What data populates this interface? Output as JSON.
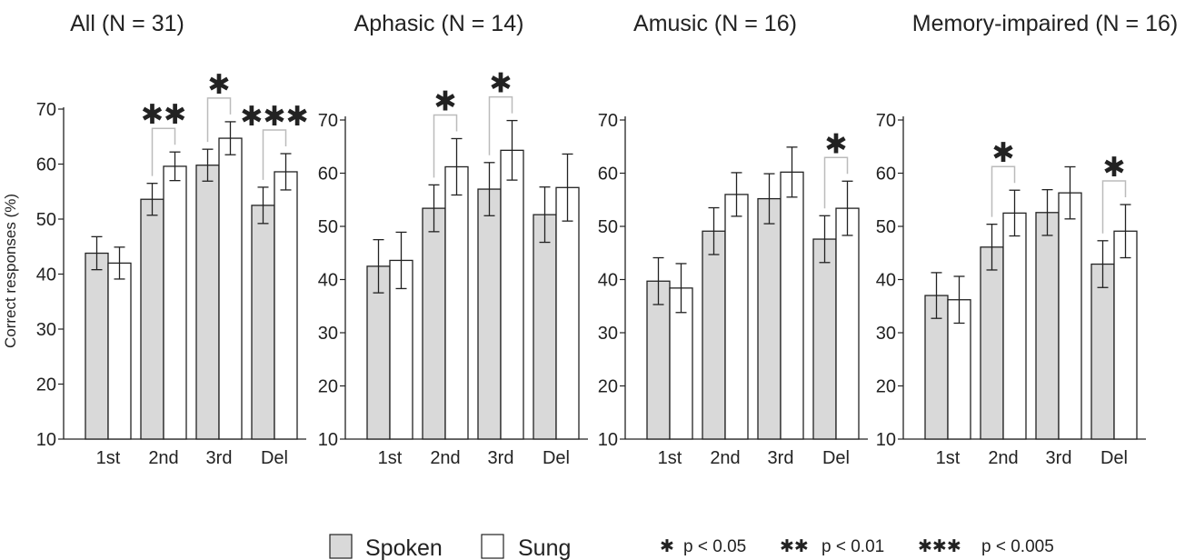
{
  "y_label": "Correct responses (%)",
  "legend": {
    "series": [
      {
        "name": "Spoken",
        "color": "#d9d9d9"
      },
      {
        "name": "Sung",
        "color": "#ffffff"
      }
    ],
    "significance": [
      {
        "symbol": "✱",
        "label": "p < 0.05"
      },
      {
        "symbol": "✱✱",
        "label": "p < 0.01"
      },
      {
        "symbol": "✱✱✱",
        "label": "p < 0.005"
      }
    ]
  },
  "chart_data": [
    {
      "type": "bar",
      "title": "All (N = 31)",
      "categories": [
        "1st",
        "2nd",
        "3rd",
        "Del"
      ],
      "ylim": [
        10,
        70
      ],
      "yticks": [
        10,
        20,
        30,
        40,
        50,
        60,
        70
      ],
      "series": [
        {
          "name": "Spoken",
          "values": [
            43.8,
            53.6,
            59.8,
            52.5
          ],
          "errors": [
            3.0,
            2.9,
            2.9,
            3.3
          ]
        },
        {
          "name": "Sung",
          "values": [
            42.0,
            59.6,
            64.7,
            58.6
          ],
          "errors": [
            2.9,
            2.6,
            3.0,
            3.3
          ]
        }
      ],
      "significance": [
        {
          "category": "2nd",
          "stars": "✱✱"
        },
        {
          "category": "3rd",
          "stars": "✱"
        },
        {
          "category": "Del",
          "stars": "✱✱✱"
        }
      ]
    },
    {
      "type": "bar",
      "title": "Aphasic (N = 14)",
      "categories": [
        "1st",
        "2nd",
        "3rd",
        "Del"
      ],
      "ylim": [
        10,
        70
      ],
      "yticks": [
        10,
        20,
        30,
        40,
        50,
        60,
        70
      ],
      "series": [
        {
          "name": "Spoken",
          "values": [
            42.5,
            53.4,
            57.0,
            52.2
          ],
          "errors": [
            5.0,
            4.4,
            5.0,
            5.2
          ]
        },
        {
          "name": "Sung",
          "values": [
            43.6,
            61.2,
            64.3,
            57.3
          ],
          "errors": [
            5.3,
            5.3,
            5.6,
            6.3
          ]
        }
      ],
      "significance": [
        {
          "category": "2nd",
          "stars": "✱"
        },
        {
          "category": "3rd",
          "stars": "✱"
        }
      ]
    },
    {
      "type": "bar",
      "title": "Amusic (N = 16)",
      "categories": [
        "1st",
        "2nd",
        "3rd",
        "Del"
      ],
      "ylim": [
        10,
        70
      ],
      "yticks": [
        10,
        20,
        30,
        40,
        50,
        60,
        70
      ],
      "series": [
        {
          "name": "Spoken",
          "values": [
            39.7,
            49.1,
            55.2,
            47.6
          ],
          "errors": [
            4.4,
            4.4,
            4.7,
            4.4
          ]
        },
        {
          "name": "Sung",
          "values": [
            38.4,
            56.0,
            60.2,
            53.4
          ],
          "errors": [
            4.6,
            4.1,
            4.7,
            5.1
          ]
        }
      ],
      "significance": [
        {
          "category": "Del",
          "stars": "✱"
        }
      ]
    },
    {
      "type": "bar",
      "title": "Memory-impaired (N = 16)",
      "categories": [
        "1st",
        "2nd",
        "3rd",
        "Del"
      ],
      "ylim": [
        10,
        70
      ],
      "yticks": [
        10,
        20,
        30,
        40,
        50,
        60,
        70
      ],
      "series": [
        {
          "name": "Spoken",
          "values": [
            37.0,
            46.1,
            52.6,
            42.9
          ],
          "errors": [
            4.3,
            4.3,
            4.3,
            4.4
          ]
        },
        {
          "name": "Sung",
          "values": [
            36.2,
            52.5,
            56.3,
            49.1
          ],
          "errors": [
            4.4,
            4.3,
            4.9,
            5.0
          ]
        }
      ],
      "significance": [
        {
          "category": "2nd",
          "stars": "✱"
        },
        {
          "category": "Del",
          "stars": "✱"
        }
      ]
    }
  ]
}
